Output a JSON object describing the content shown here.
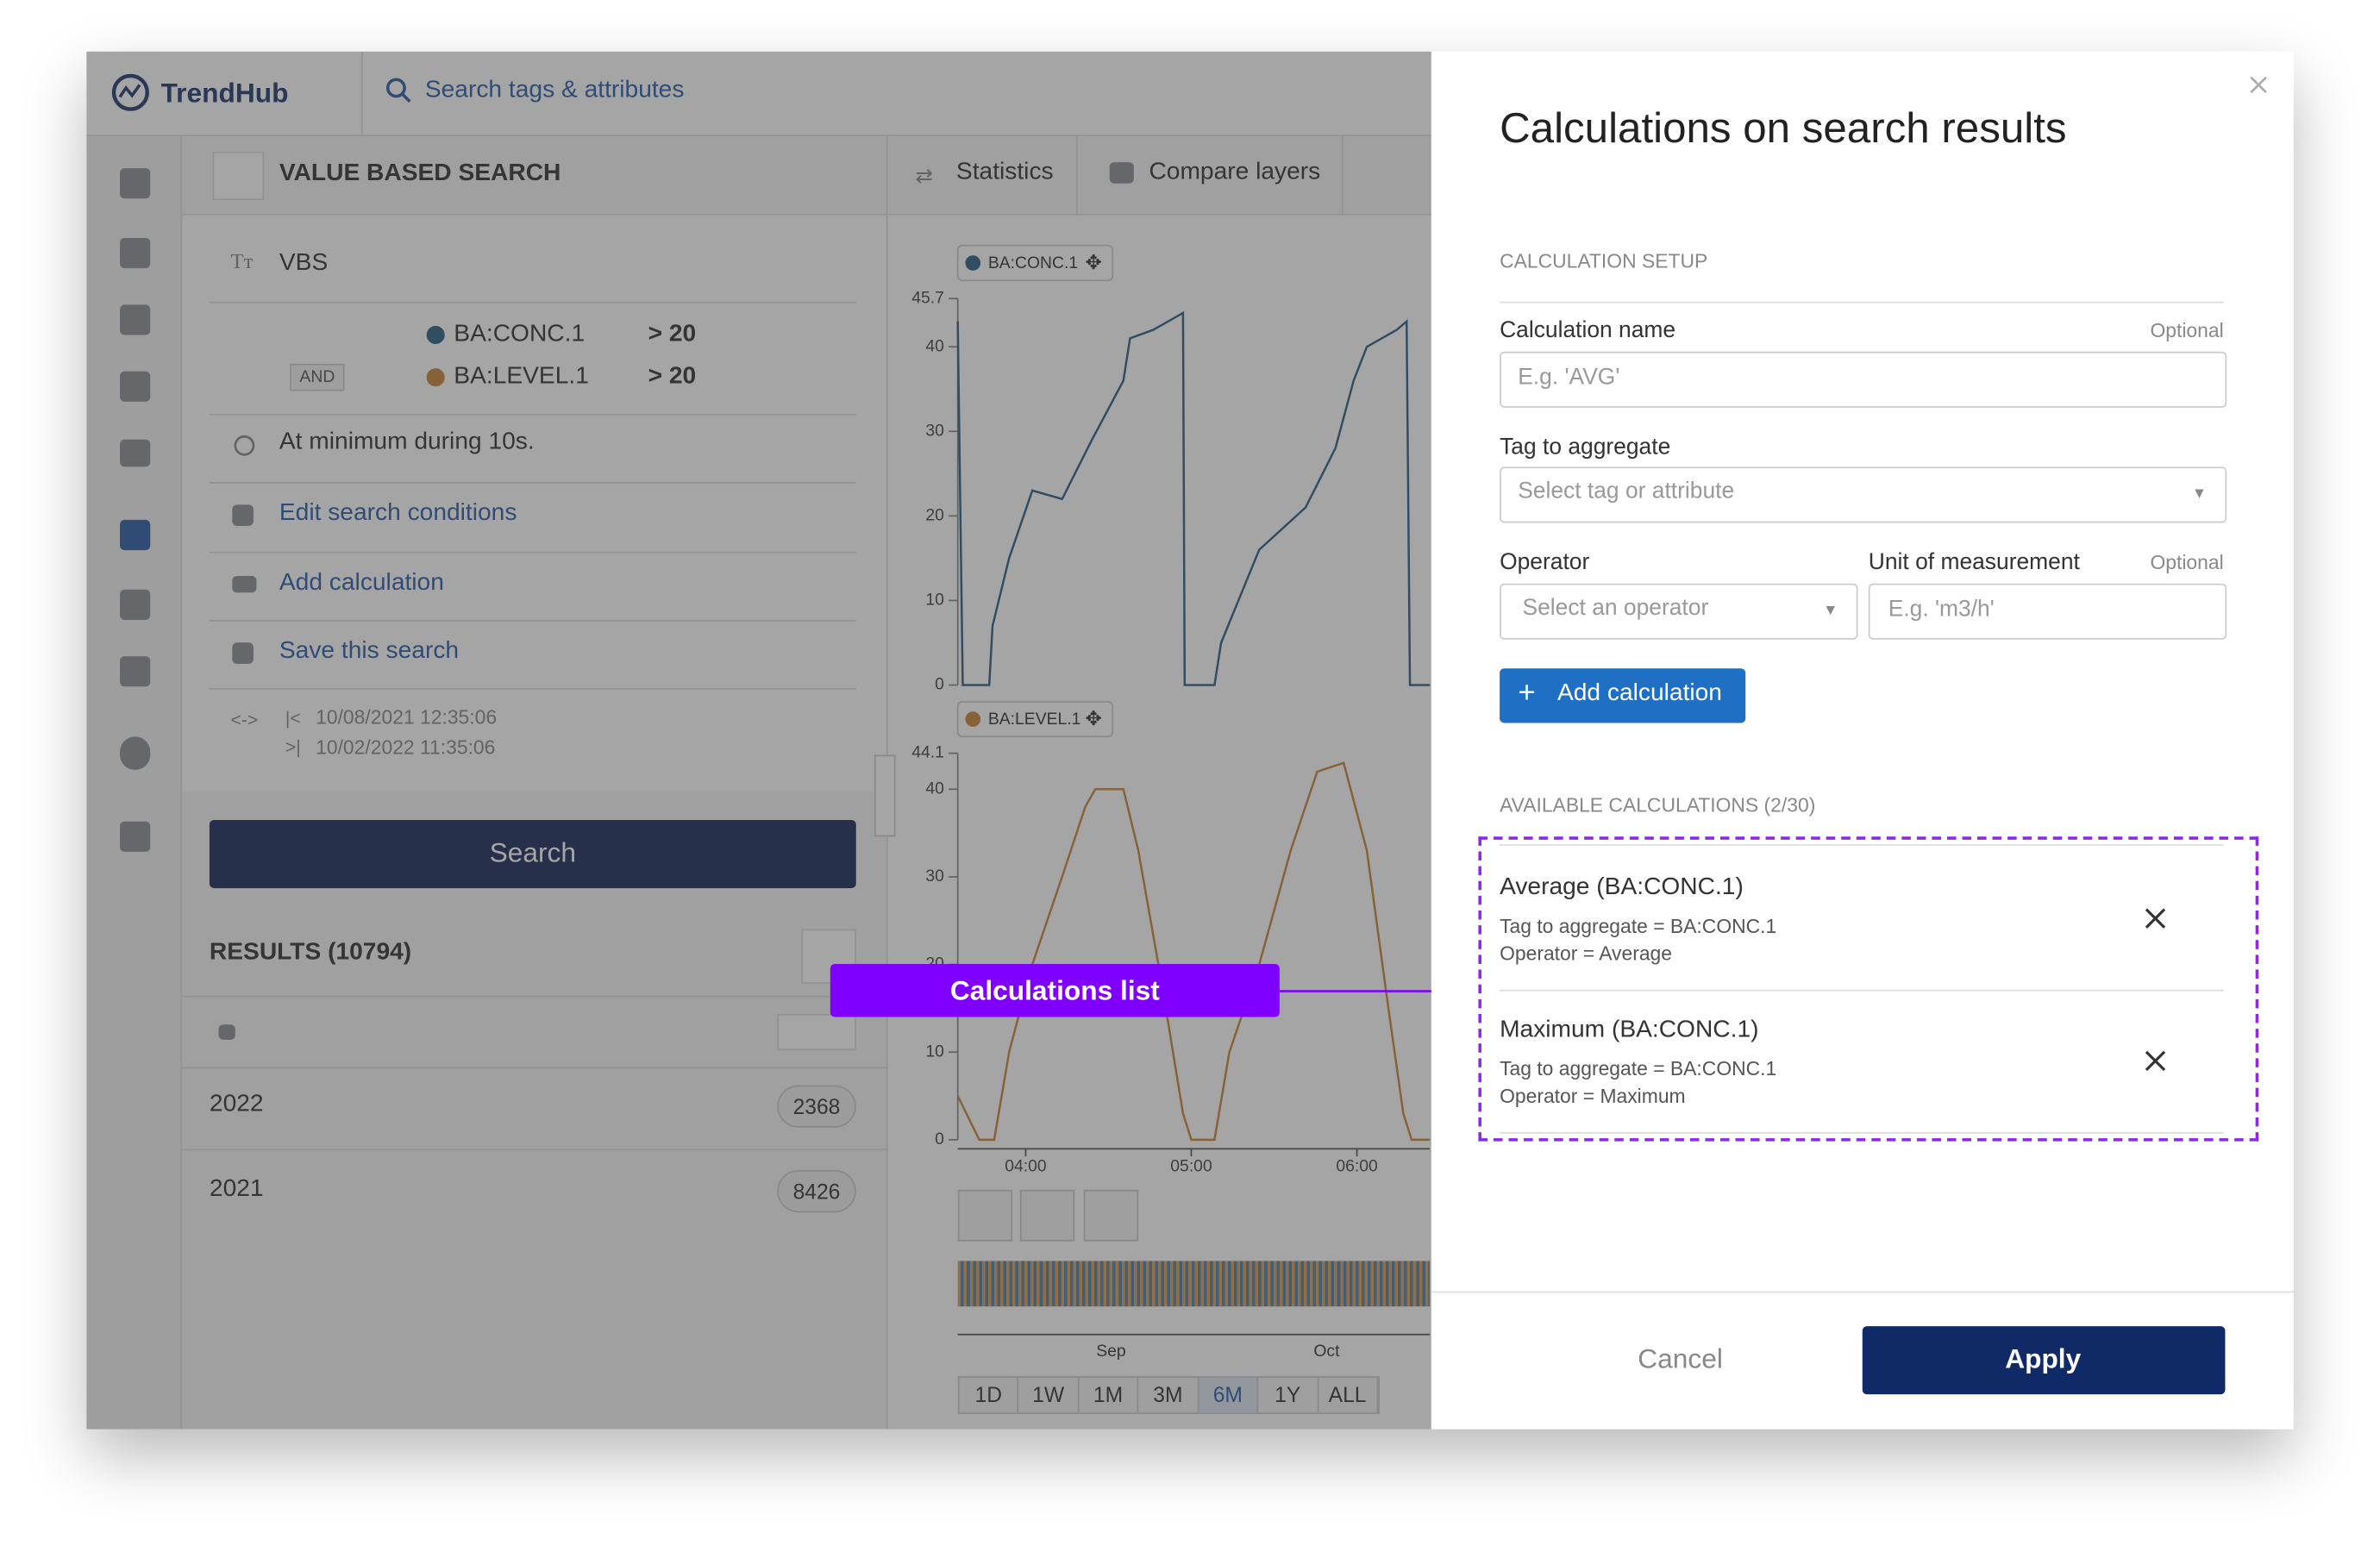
{
  "app": {
    "logo": "TrendHub",
    "search_placeholder": "Search tags & attributes"
  },
  "search_panel": {
    "title": "VALUE BASED SEARCH",
    "name": "VBS",
    "conditions": [
      {
        "tag": "BA:CONC.1",
        "condition": "> 20"
      },
      {
        "operator": "AND",
        "tag": "BA:LEVEL.1",
        "condition": "> 20"
      }
    ],
    "duration": "At minimum during 10s.",
    "actions": [
      "Edit search conditions",
      "Add calculation",
      "Save this search"
    ],
    "start": "10/08/2021 12:35:06",
    "end": "10/02/2022 11:35:06",
    "search_button": "Search",
    "results_title": "RESULTS (10794)",
    "results": [
      {
        "label": "2022",
        "count": 2368
      },
      {
        "label": "2021",
        "count": 8426
      }
    ]
  },
  "tabs": [
    "Statistics",
    "Compare layers"
  ],
  "chart_data": [
    {
      "type": "line",
      "x": [
        3.59,
        3.62,
        3.78,
        3.8,
        3.9,
        4.04,
        4.22,
        4.4,
        4.59,
        4.63,
        4.77,
        4.95,
        4.96,
        5.14,
        5.18,
        5.41,
        5.69,
        5.87,
        5.98,
        6.06,
        6.24,
        6.3,
        6.32,
        6.44
      ],
      "series": [
        {
          "name": "BA:CONC.1",
          "color": "#2b5f85",
          "values": [
            43,
            0,
            0,
            7,
            15,
            23,
            22,
            29,
            36,
            41,
            42,
            44,
            0,
            0,
            5,
            16,
            21,
            28,
            36,
            40,
            42,
            43,
            0,
            0
          ]
        }
      ],
      "xlim": [
        3.59,
        6.44
      ],
      "ylim": [
        0,
        45.7
      ],
      "yticks": [
        0,
        10,
        20,
        30,
        40,
        45.7
      ]
    },
    {
      "type": "line",
      "x": [
        3.59,
        3.72,
        3.81,
        3.9,
        4.04,
        4.22,
        4.36,
        4.42,
        4.59,
        4.68,
        4.82,
        4.95,
        5.0,
        5.14,
        5.23,
        5.41,
        5.6,
        5.76,
        5.92,
        6.06,
        6.19,
        6.28,
        6.33,
        6.44
      ],
      "series": [
        {
          "name": "BA:LEVEL.1",
          "color": "#c9853a",
          "values": [
            5,
            0,
            0,
            10,
            20,
            30,
            38,
            40,
            40,
            33,
            18,
            3,
            0,
            0,
            10,
            20,
            33,
            42,
            43,
            33,
            15,
            3,
            0,
            0
          ]
        }
      ],
      "xlim": [
        3.59,
        6.44
      ],
      "ylim": [
        0,
        44.1
      ],
      "yticks": [
        0,
        10,
        20,
        30,
        40,
        44.1
      ],
      "xticks": [
        {
          "value": 4,
          "label": "04:00"
        },
        {
          "value": 5,
          "label": "05:00"
        },
        {
          "value": 6,
          "label": "06:00"
        }
      ]
    }
  ],
  "overview": {
    "x_labels": [
      "Sep",
      "Oct"
    ]
  },
  "range_buttons": [
    "1D",
    "1W",
    "1M",
    "3M",
    "6M",
    "1Y",
    "ALL"
  ],
  "annotation": "Calculations list",
  "modal": {
    "title": "Calculations on search results",
    "setup_heading": "CALCULATION SETUP",
    "optional": "Optional",
    "name_label": "Calculation name",
    "name_placeholder": "E.g. 'AVG'",
    "tag_label": "Tag to aggregate",
    "tag_placeholder": "Select tag or attribute",
    "operator_label": "Operator",
    "operator_placeholder": "Select an operator",
    "unit_label": "Unit of measurement",
    "unit_placeholder": "E.g. 'm3/h'",
    "add_button": "Add calculation",
    "available_heading": "AVAILABLE CALCULATIONS (2/30)",
    "calculations": [
      {
        "title": "Average (BA:CONC.1)",
        "tag_line": "Tag to aggregate = BA:CONC.1",
        "operator_line": "Operator = Average"
      },
      {
        "title": "Maximum (BA:CONC.1)",
        "tag_line": "Tag to aggregate = BA:CONC.1",
        "operator_line": "Operator = Maximum"
      }
    ],
    "cancel": "Cancel",
    "apply": "Apply"
  }
}
